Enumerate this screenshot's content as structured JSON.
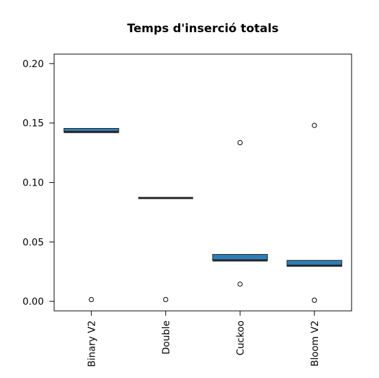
{
  "chart_data": {
    "type": "boxplot",
    "title": "Temps d'inserció totals",
    "xlabel": "",
    "ylabel": "",
    "ylim": [
      -0.008,
      0.208
    ],
    "yticks": [
      0.0,
      0.05,
      0.1,
      0.15,
      0.2
    ],
    "ytick_labels": [
      "0.00",
      "0.05",
      "0.10",
      "0.15",
      "0.20"
    ],
    "box_color": "#2E7EB8",
    "categories": [
      "Binary V2",
      "Double",
      "Cuckoo",
      "Bloom V2"
    ],
    "boxes": [
      {
        "name": "Binary V2",
        "q1": 0.1425,
        "median": 0.1425,
        "q3": 0.1455,
        "outliers": [
          0.0015
        ]
      },
      {
        "name": "Double",
        "q1": 0.087,
        "median": 0.087,
        "q3": 0.087,
        "outliers": [
          0.0015
        ]
      },
      {
        "name": "Cuckoo",
        "q1": 0.0345,
        "median": 0.0345,
        "q3": 0.0395,
        "outliers": [
          0.1335,
          0.0145
        ]
      },
      {
        "name": "Bloom V2",
        "q1": 0.0295,
        "median": 0.03,
        "q3": 0.0345,
        "outliers": [
          0.148,
          0.001
        ]
      }
    ]
  }
}
